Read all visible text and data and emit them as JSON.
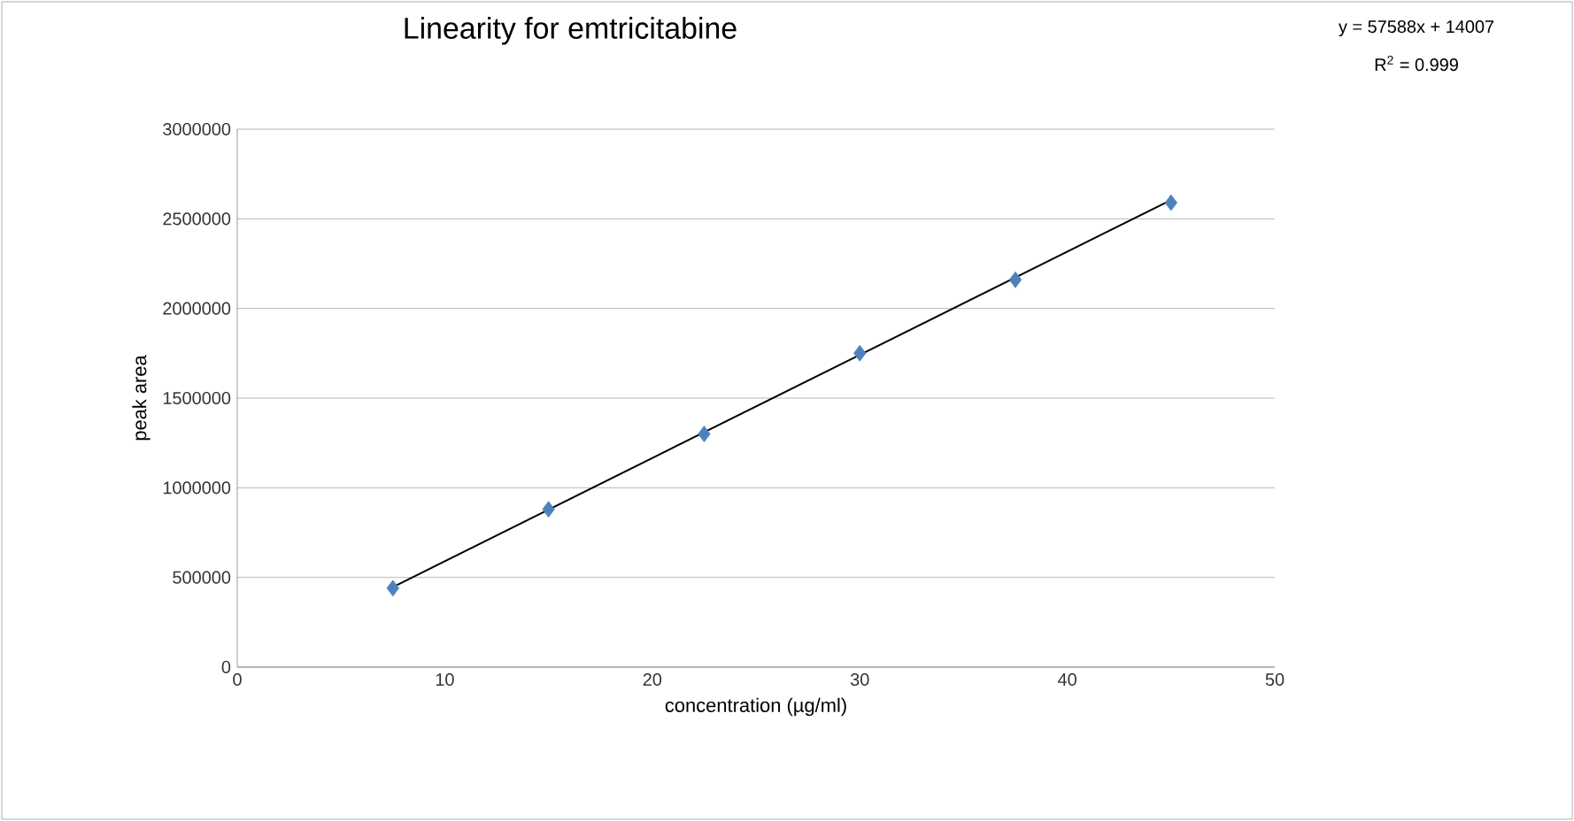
{
  "chart_data": {
    "type": "scatter",
    "title": "Linearity for emtricitabine",
    "xlabel": "concentration (µg/ml)",
    "ylabel": "peak area",
    "annotations": [
      "y = 57588x + 14007",
      "R$^{2}$ = 0.999"
    ],
    "series": [
      {
        "color": "#4f81bd",
        "marker": "diamond",
        "x": [
          7.5,
          15,
          22.5,
          30,
          37.5,
          45
        ],
        "values": [
          440000,
          880000,
          1300000,
          1750000,
          2160000,
          2590000
        ]
      },
      {
        "type": "line",
        "color": "#000000",
        "line_style": "solid",
        "x": [
          7.5,
          45
        ],
        "values": [
          446000,
          2605000
        ]
      }
    ],
    "xlim": [
      0,
      50
    ],
    "xticks": [
      0,
      10,
      20,
      30,
      40,
      50
    ],
    "ylim": [
      0,
      3000000
    ],
    "yticks": [
      0,
      500000,
      1000000,
      1500000,
      2000000,
      2500000,
      3000000
    ],
    "grid": "y"
  }
}
